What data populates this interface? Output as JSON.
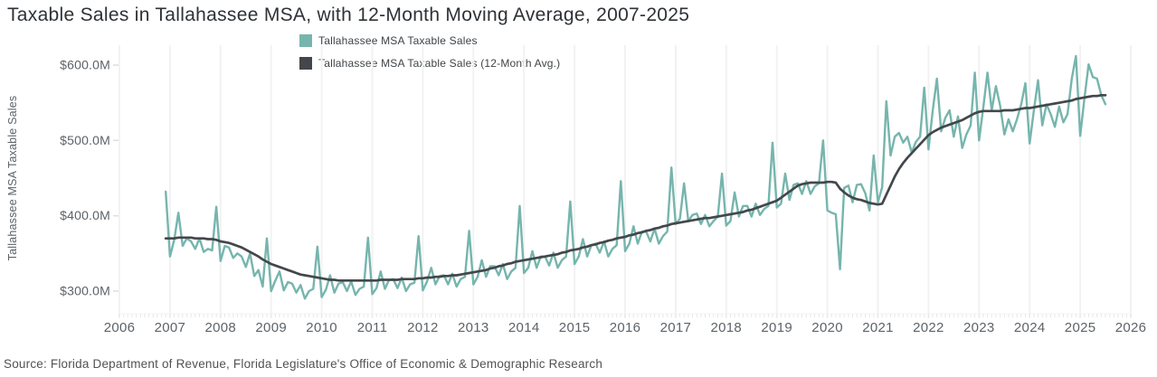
{
  "title": "Taxable Sales in Tallahassee MSA, with 12-Month Moving Average, 2007-2025",
  "source": "Source: Florida Department of Revenue, Florida Legislature's Office of Economic & Demographic Research",
  "legend": [
    {
      "label": "Tallahassee MSA Taxable Sales",
      "color": "#76b5ad"
    },
    {
      "label": "Tallahassee MSA Taxable Sales (12-Month Avg.)",
      "color": "#43474b"
    }
  ],
  "y_axis": {
    "title": "Tallahassee MSA Taxable Sales",
    "tick_labels": [
      "$600.0M",
      "$500.0M",
      "$400.0M",
      "$300.0M"
    ],
    "tick_values": [
      600,
      500,
      400,
      300
    ]
  },
  "x_axis": {
    "tick_labels": [
      "2006",
      "2007",
      "2008",
      "2009",
      "2010",
      "2011",
      "2012",
      "2013",
      "2014",
      "2015",
      "2016",
      "2017",
      "2018",
      "2019",
      "2020",
      "2021",
      "2022",
      "2023",
      "2024",
      "2025",
      "2026"
    ],
    "tick_values": [
      2006,
      2007,
      2008,
      2009,
      2010,
      2011,
      2012,
      2013,
      2014,
      2015,
      2016,
      2017,
      2018,
      2019,
      2020,
      2021,
      2022,
      2023,
      2024,
      2025,
      2026
    ]
  },
  "colors": {
    "sales": "#76b5ad",
    "avg": "#43474b",
    "grid": "#f2f2f2",
    "minor_tick": "#e7e7e7",
    "y_tick": "#dedede",
    "axis_text": "#5d6368",
    "title_text": "#2e3236"
  },
  "chart_data": {
    "type": "line",
    "title": "Taxable Sales in Tallahassee MSA, with 12-Month Moving Average, 2007-2025",
    "xlabel": "",
    "ylabel": "Tallahassee MSA Taxable Sales",
    "units": "USD millions",
    "x_start_month": "2006-12",
    "x_step_months": 1,
    "xlim_years": [
      2006,
      2026
    ],
    "ylim": [
      270,
      626
    ],
    "grid": "vertical-year-gridlines-only",
    "legend_position": "top-center",
    "series": [
      {
        "name": "Tallahassee MSA Taxable Sales",
        "color": "#76b5ad",
        "values": [
          432,
          346,
          368,
          404,
          360,
          370,
          366,
          356,
          370,
          352,
          356,
          354,
          412,
          340,
          360,
          358,
          344,
          350,
          346,
          332,
          350,
          320,
          328,
          306,
          370,
          300,
          314,
          326,
          301,
          312,
          310,
          298,
          308,
          290,
          300,
          303,
          359,
          292,
          302,
          321,
          298,
          310,
          312,
          300,
          313,
          295,
          303,
          306,
          371,
          296,
          304,
          326,
          303,
          315,
          316,
          304,
          318,
          300,
          309,
          311,
          373,
          301,
          313,
          331,
          309,
          320,
          321,
          309,
          323,
          306,
          316,
          319,
          380,
          309,
          319,
          341,
          319,
          333,
          333,
          321,
          336,
          316,
          326,
          331,
          413,
          324,
          331,
          353,
          331,
          346,
          346,
          334,
          351,
          331,
          341,
          346,
          419,
          336,
          346,
          369,
          346,
          361,
          363,
          351,
          366,
          346,
          356,
          361,
          446,
          353,
          363,
          386,
          363,
          379,
          379,
          366,
          383,
          363,
          373,
          379,
          464,
          389,
          396,
          443,
          393,
          401,
          403,
          389,
          401,
          386,
          393,
          399,
          456,
          387,
          393,
          431,
          399,
          413,
          413,
          399,
          416,
          401,
          409,
          413,
          497,
          411,
          416,
          456,
          421,
          441,
          443,
          429,
          446,
          429,
          439,
          443,
          500,
          407,
          404,
          402,
          329,
          437,
          440,
          418,
          441,
          442,
          430,
          407,
          480,
          418,
          438,
          552,
          480,
          505,
          510,
          497,
          505,
          484,
          498,
          505,
          570,
          488,
          540,
          582,
          512,
          530,
          540,
          505,
          532,
          490,
          508,
          520,
          590,
          500,
          544,
          590,
          540,
          572,
          546,
          508,
          528,
          512,
          528,
          548,
          576,
          496,
          540,
          580,
          520,
          548,
          535,
          518,
          545,
          524,
          535,
          582,
          612,
          506,
          556,
          601,
          584,
          582,
          560,
          548
        ]
      },
      {
        "name": "Tallahassee MSA Taxable Sales (12-Month Avg.)",
        "color": "#43474b",
        "values": [
          370,
          370,
          370,
          371,
          371,
          371,
          371,
          370,
          370,
          370,
          369,
          369,
          368,
          366,
          365,
          364,
          362,
          360,
          358,
          355,
          352,
          349,
          346,
          342,
          339,
          336,
          334,
          332,
          330,
          328,
          326,
          324,
          322,
          321,
          320,
          319,
          318,
          317,
          316,
          315,
          315,
          314,
          314,
          314,
          314,
          314,
          314,
          314,
          314,
          314,
          314,
          315,
          315,
          315,
          315,
          315,
          316,
          316,
          316,
          316,
          317,
          317,
          318,
          318,
          319,
          319,
          320,
          320,
          321,
          321,
          322,
          323,
          324,
          325,
          326,
          327,
          328,
          330,
          331,
          333,
          334,
          336,
          337,
          339,
          340,
          341,
          342,
          343,
          344,
          345,
          346,
          347,
          348,
          349,
          351,
          352,
          354,
          355,
          356,
          358,
          359,
          361,
          362,
          364,
          365,
          367,
          368,
          370,
          371,
          372,
          374,
          375,
          377,
          378,
          380,
          381,
          383,
          384,
          386,
          387,
          389,
          390,
          391,
          392,
          393,
          394,
          395,
          396,
          397,
          397,
          398,
          399,
          400,
          401,
          402,
          403,
          404,
          405,
          407,
          408,
          410,
          412,
          414,
          416,
          418,
          420,
          424,
          428,
          432,
          436,
          440,
          442,
          443,
          444,
          444,
          444,
          444,
          445,
          445,
          444,
          436,
          431,
          427,
          424,
          422,
          421,
          419,
          417,
          416,
          415,
          416,
          428,
          440,
          452,
          462,
          470,
          477,
          483,
          489,
          495,
          501,
          507,
          511,
          514,
          517,
          519,
          521,
          523,
          525,
          527,
          530,
          533,
          536,
          538,
          539,
          539,
          539,
          539,
          539,
          540,
          540,
          540,
          541,
          542,
          543,
          543,
          544,
          545,
          546,
          547,
          548,
          549,
          550,
          551,
          552,
          553,
          555,
          556,
          557,
          558,
          559,
          559,
          560,
          560
        ]
      }
    ]
  }
}
